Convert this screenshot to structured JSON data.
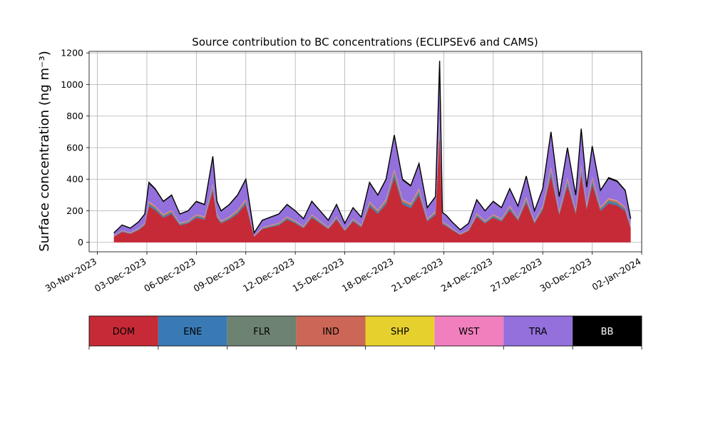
{
  "chart_data": {
    "type": "area",
    "title": "Source contribution to BC concentrations (ECLIPSEv6 and CAMS)",
    "ylabel": "Surface concentration (ng m⁻³)",
    "xlabel": "",
    "xlim": [
      "2023-11-29T12:00",
      "2024-01-02T00:00"
    ],
    "ylim": [
      -60,
      1210
    ],
    "yticks": [
      0,
      200,
      400,
      600,
      800,
      1000,
      1200
    ],
    "xticks": [
      "30-Nov-2023",
      "03-Dec-2023",
      "06-Dec-2023",
      "09-Dec-2023",
      "12-Dec-2023",
      "15-Dec-2023",
      "18-Dec-2023",
      "21-Dec-2023",
      "24-Dec-2023",
      "27-Dec-2023",
      "30-Dec-2023",
      "02-Jan-2024"
    ],
    "xtick_dates": [
      "2023-11-30",
      "2023-12-03",
      "2023-12-06",
      "2023-12-09",
      "2023-12-12",
      "2023-12-15",
      "2023-12-18",
      "2023-12-21",
      "2023-12-24",
      "2023-12-27",
      "2023-12-30",
      "2024-01-02"
    ],
    "grid": true,
    "stacked": true,
    "x": [
      "2023-12-01T00:00",
      "2023-12-01T12:00",
      "2023-12-02T00:00",
      "2023-12-02T12:00",
      "2023-12-02T21:00",
      "2023-12-03T03:00",
      "2023-12-03T12:00",
      "2023-12-04T00:00",
      "2023-12-04T12:00",
      "2023-12-05T00:00",
      "2023-12-05T12:00",
      "2023-12-06T00:00",
      "2023-12-06T12:00",
      "2023-12-07T00:00",
      "2023-12-07T06:00",
      "2023-12-07T12:00",
      "2023-12-08T00:00",
      "2023-12-08T12:00",
      "2023-12-09T00:00",
      "2023-12-09T12:00",
      "2023-12-10T00:00",
      "2023-12-10T12:00",
      "2023-12-11T00:00",
      "2023-12-11T12:00",
      "2023-12-12T00:00",
      "2023-12-12T12:00",
      "2023-12-13T00:00",
      "2023-12-13T12:00",
      "2023-12-14T00:00",
      "2023-12-14T12:00",
      "2023-12-15T00:00",
      "2023-12-15T12:00",
      "2023-12-16T00:00",
      "2023-12-16T12:00",
      "2023-12-17T00:00",
      "2023-12-17T12:00",
      "2023-12-18T00:00",
      "2023-12-18T12:00",
      "2023-12-19T00:00",
      "2023-12-19T12:00",
      "2023-12-20T00:00",
      "2023-12-20T12:00",
      "2023-12-20T18:00",
      "2023-12-20T22:00",
      "2023-12-21T04:00",
      "2023-12-21T12:00",
      "2023-12-22T00:00",
      "2023-12-22T12:00",
      "2023-12-23T00:00",
      "2023-12-23T12:00",
      "2023-12-24T00:00",
      "2023-12-24T12:00",
      "2023-12-25T00:00",
      "2023-12-25T12:00",
      "2023-12-26T00:00",
      "2023-12-26T12:00",
      "2023-12-27T00:00",
      "2023-12-27T12:00",
      "2023-12-28T00:00",
      "2023-12-28T12:00",
      "2023-12-29T00:00",
      "2023-12-29T08:00",
      "2023-12-29T16:00",
      "2023-12-30T00:00",
      "2023-12-30T12:00",
      "2023-12-31T00:00",
      "2023-12-31T12:00",
      "2024-01-01T00:00",
      "2024-01-01T08:00"
    ],
    "total": [
      60,
      110,
      90,
      130,
      180,
      380,
      340,
      260,
      300,
      180,
      200,
      260,
      240,
      545,
      260,
      200,
      240,
      300,
      400,
      60,
      140,
      160,
      180,
      240,
      200,
      150,
      260,
      200,
      140,
      240,
      120,
      220,
      160,
      380,
      300,
      400,
      680,
      400,
      360,
      500,
      220,
      290,
      1150,
      190,
      170,
      130,
      80,
      120,
      270,
      200,
      260,
      220,
      340,
      230,
      420,
      200,
      340,
      700,
      290,
      600,
      300,
      720,
      350,
      610,
      330,
      410,
      390,
      330,
      150
    ],
    "series": [
      {
        "name": "DOM",
        "color": "#c62a36",
        "fraction": 0.6
      },
      {
        "name": "ENE",
        "color": "#3a7ab4",
        "fraction": 0.03
      },
      {
        "name": "FLR",
        "color": "#6e8271",
        "fraction": 0.02
      },
      {
        "name": "IND",
        "color": "#cc6656",
        "fraction": 0.02
      },
      {
        "name": "SHP",
        "color": "#e6d02d",
        "fraction": 0.005
      },
      {
        "name": "WST",
        "color": "#f17fbe",
        "fraction": 0.005
      },
      {
        "name": "TRA",
        "color": "#9370db",
        "fraction": 0.3
      },
      {
        "name": "BB",
        "color": "#000000",
        "fraction": 0.02
      }
    ]
  },
  "legend": {
    "items": [
      {
        "label": "DOM",
        "color": "#c62a36",
        "text_color": "#000000"
      },
      {
        "label": "ENE",
        "color": "#3a7ab4",
        "text_color": "#000000"
      },
      {
        "label": "FLR",
        "color": "#6e8271",
        "text_color": "#000000"
      },
      {
        "label": "IND",
        "color": "#cc6656",
        "text_color": "#000000"
      },
      {
        "label": "SHP",
        "color": "#e6d02d",
        "text_color": "#000000"
      },
      {
        "label": "WST",
        "color": "#f17fbe",
        "text_color": "#000000"
      },
      {
        "label": "TRA",
        "color": "#9370db",
        "text_color": "#000000"
      },
      {
        "label": "BB",
        "color": "#000000",
        "text_color": "#ffffff"
      }
    ]
  }
}
